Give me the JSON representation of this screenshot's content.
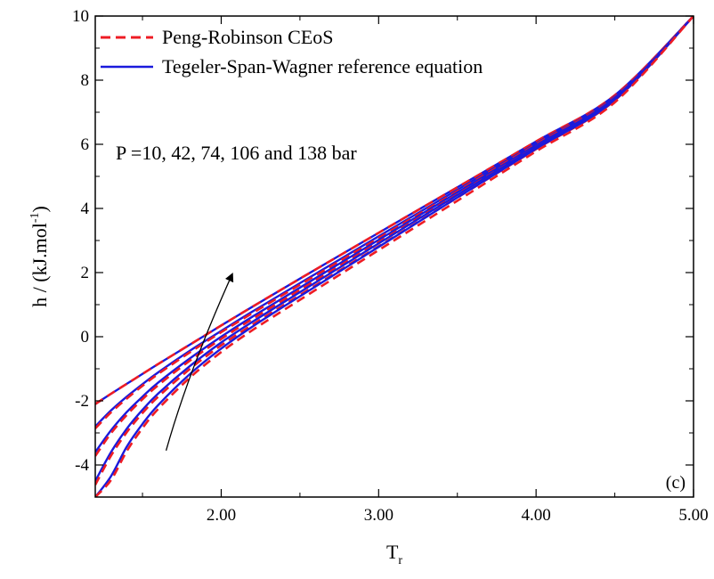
{
  "chart_data": {
    "type": "line",
    "title": "",
    "xlabel": "T",
    "xlabel_sub": "r",
    "ylabel_main": "h / (kJ.mol",
    "ylabel_sup": "-1",
    "ylabel_end": ")",
    "xlim": [
      1.2,
      5.0
    ],
    "ylim": [
      -5,
      10
    ],
    "xticks": [
      2.0,
      3.0,
      4.0,
      5.0
    ],
    "xtick_labels": [
      "2.00",
      "3.00",
      "4.00",
      "5.00"
    ],
    "yticks": [
      -4,
      -2,
      0,
      2,
      4,
      6,
      8,
      10
    ],
    "ytick_labels": [
      "-4",
      "-2",
      "0",
      "2",
      "4",
      "6",
      "8",
      "10"
    ],
    "grid": false,
    "legend_position": "top-left",
    "legend": [
      {
        "label": "Peng-Robinson CEoS",
        "style": "dashed",
        "color": "#ee1c24"
      },
      {
        "label": "Tegeler-Span-Wagner reference equation",
        "style": "solid",
        "color": "#1a1adc"
      }
    ],
    "annotation": "P =10, 42, 74, 106 and 138 bar",
    "panel_label": "(c)",
    "arrow": {
      "from": [
        1.65,
        -3.55
      ],
      "to": [
        2.07,
        1.95
      ]
    },
    "x": [
      1.2,
      1.3,
      1.4,
      1.5,
      1.6,
      1.8,
      2.0,
      2.2,
      2.5,
      3.0,
      3.5,
      4.0,
      4.5,
      5.0
    ],
    "series": [
      {
        "pressure_bar": 10,
        "Tegeler-Span-Wagner": [
          -2.1,
          -1.78,
          -1.47,
          -1.16,
          -0.85,
          -0.25,
          0.35,
          0.94,
          1.81,
          3.24,
          4.66,
          6.09,
          7.53,
          10.0
        ],
        "Peng-Robinson": [
          -2.1,
          -1.78,
          -1.47,
          -1.16,
          -0.85,
          -0.25,
          0.35,
          0.94,
          1.81,
          3.24,
          4.66,
          6.09,
          7.53,
          10.0
        ]
      },
      {
        "pressure_bar": 42,
        "Tegeler-Span-Wagner": [
          -2.8,
          -2.3,
          -1.87,
          -1.48,
          -1.11,
          -0.44,
          0.18,
          0.79,
          1.67,
          3.13,
          4.58,
          6.03,
          7.49,
          10.0
        ],
        "Peng-Robinson": [
          -2.86,
          -2.36,
          -1.93,
          -1.53,
          -1.16,
          -0.49,
          0.14,
          0.74,
          1.62,
          3.08,
          4.54,
          6.0,
          7.47,
          10.0
        ]
      },
      {
        "pressure_bar": 74,
        "Tegeler-Span-Wagner": [
          -3.6,
          -2.92,
          -2.35,
          -1.87,
          -1.43,
          -0.68,
          0.0,
          0.63,
          1.53,
          3.02,
          4.5,
          5.97,
          7.45,
          10.0
        ],
        "Peng-Robinson": [
          -3.72,
          -3.01,
          -2.44,
          -1.95,
          -1.51,
          -0.75,
          -0.07,
          0.56,
          1.46,
          2.95,
          4.44,
          5.92,
          7.41,
          10.0
        ]
      },
      {
        "pressure_bar": 106,
        "Tegeler-Span-Wagner": [
          -4.5,
          -3.6,
          -2.87,
          -2.28,
          -1.77,
          -0.92,
          -0.18,
          0.47,
          1.39,
          2.91,
          4.42,
          5.92,
          7.42,
          10.0
        ],
        "Peng-Robinson": [
          -4.62,
          -3.71,
          -2.98,
          -2.38,
          -1.87,
          -1.01,
          -0.27,
          0.38,
          1.3,
          2.82,
          4.34,
          5.85,
          7.37,
          10.0
        ]
      },
      {
        "pressure_bar": 138,
        "Tegeler-Span-Wagner": [
          -5.0,
          -4.35,
          -3.43,
          -2.72,
          -2.13,
          -1.17,
          -0.37,
          0.32,
          1.26,
          2.8,
          4.34,
          5.86,
          7.38,
          10.0
        ],
        "Peng-Robinson": [
          -5.0,
          -4.47,
          -3.57,
          -2.85,
          -2.25,
          -1.28,
          -0.48,
          0.21,
          1.15,
          2.7,
          4.24,
          5.78,
          7.31,
          10.0
        ]
      }
    ]
  }
}
